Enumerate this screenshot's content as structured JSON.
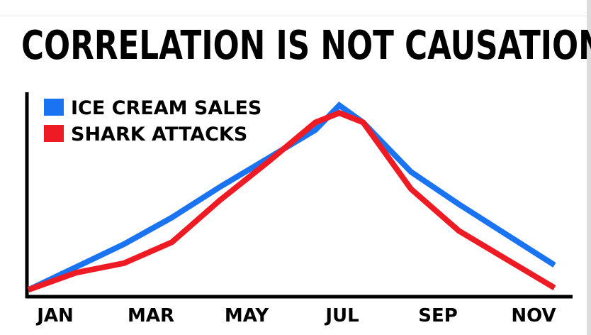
{
  "chart_data": {
    "type": "line",
    "title": "CORRELATION IS NOT CAUSATION!",
    "xlabel": "",
    "ylabel": "",
    "x_labels_shown": [
      "JAN",
      "MAR",
      "MAY",
      "JUL",
      "SEP",
      "NOV"
    ],
    "x": [
      1,
      2,
      3,
      4,
      5,
      6,
      7,
      7.5,
      8,
      9,
      10,
      11,
      12
    ],
    "xlim": [
      1,
      12.2
    ],
    "ylim": [
      0,
      100
    ],
    "legend_position": "top-left",
    "grid": false,
    "series": [
      {
        "name": "ICE CREAM SALES",
        "color": "#1a73f0",
        "x": [
          1,
          2,
          3,
          4,
          5,
          6,
          7,
          7.5,
          8,
          9,
          10,
          11,
          12
        ],
        "values": [
          1,
          13,
          25,
          39,
          55,
          70,
          85,
          98,
          89,
          63,
          46,
          30,
          14
        ]
      },
      {
        "name": "SHARK ATTACKS",
        "color": "#ee1b24",
        "x": [
          1,
          2,
          3,
          4,
          5,
          6,
          7,
          7.5,
          8,
          9,
          10,
          11,
          12
        ],
        "values": [
          1,
          10,
          15,
          26,
          48,
          68,
          89,
          94,
          89,
          54,
          32,
          17,
          2
        ]
      }
    ]
  }
}
